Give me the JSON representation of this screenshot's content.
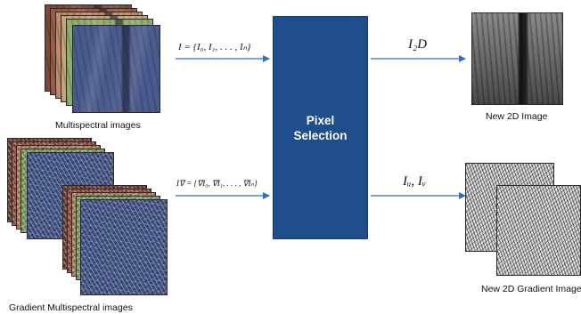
{
  "captions": {
    "multispectral": "Multispectral images",
    "gradient_multispectral": "Gradient Multispectral images",
    "new_2d": "New 2D Image",
    "new_2d_gradient": "New 2D Gradient Image"
  },
  "box": {
    "line1": "Pixel",
    "line2": "Selection"
  },
  "equations": {
    "input_images": "I = {I₀, I₁, . . . , Iₙ}",
    "input_gradients": "I∇ = {∇I₀, ∇I₁, . . . , ∇Iₙ}",
    "output_2d": "I₂D",
    "output_gradient": "Iᵤ, Iᵥ"
  },
  "colors": {
    "box": "#1f4e8c",
    "arrow": "#2b6fd6",
    "layers": [
      "#9b5a4a",
      "#c9a27a",
      "#8fae6c",
      "#6f8ab8"
    ],
    "top_image": "#4a5a8e"
  }
}
